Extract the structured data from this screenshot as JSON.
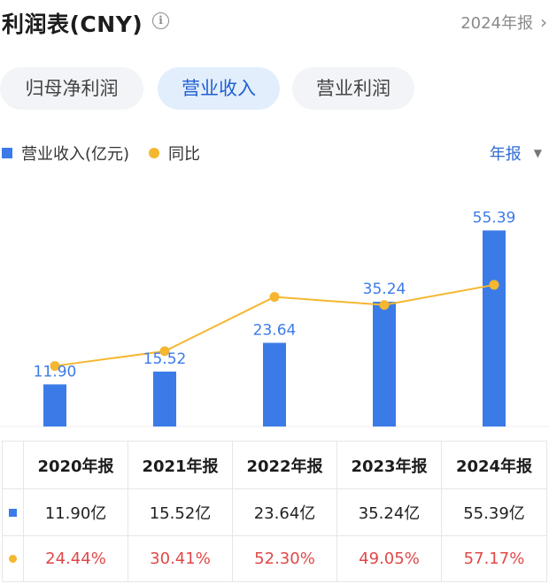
{
  "header": {
    "title": "利润表(CNY)",
    "info_icon": "info-icon",
    "period_link": "2024年报",
    "chevron_icon": "chevron-right-icon"
  },
  "tabs": [
    {
      "label": "归母净利润",
      "active": false
    },
    {
      "label": "营业收入",
      "active": true
    },
    {
      "label": "营业利润",
      "active": false
    }
  ],
  "legend": {
    "bar_label": "营业收入(亿元)",
    "line_label": "同比"
  },
  "period_select": {
    "label": "年报",
    "caret_icon": "caret-down-icon"
  },
  "colors": {
    "bar": "#3b7be8",
    "line": "#f5b730",
    "bar_label": "#3b7be8",
    "yoy_text": "#e04848",
    "accent": "#1f5fd1"
  },
  "chart_data": {
    "type": "bar",
    "categories": [
      "2020年报",
      "2021年报",
      "2022年报",
      "2023年报",
      "2024年报"
    ],
    "series": [
      {
        "name": "营业收入(亿元)",
        "type": "bar",
        "values": [
          11.9,
          15.52,
          23.64,
          35.24,
          55.39
        ],
        "labels": [
          "11.90",
          "15.52",
          "23.64",
          "35.24",
          "55.39"
        ]
      },
      {
        "name": "同比",
        "type": "line",
        "values": [
          24.44,
          30.41,
          52.3,
          49.05,
          57.17
        ]
      }
    ],
    "ylim": [
      0,
      60
    ],
    "y2lim": [
      0,
      100
    ],
    "grid": false,
    "legend_position": "top-left"
  },
  "table": {
    "headers": [
      "2020年报",
      "2021年报",
      "2022年报",
      "2023年报",
      "2024年报"
    ],
    "revenue_row": [
      "11.90亿",
      "15.52亿",
      "23.64亿",
      "35.24亿",
      "55.39亿"
    ],
    "yoy_row": [
      "24.44%",
      "30.41%",
      "52.30%",
      "49.05%",
      "57.17%"
    ]
  }
}
